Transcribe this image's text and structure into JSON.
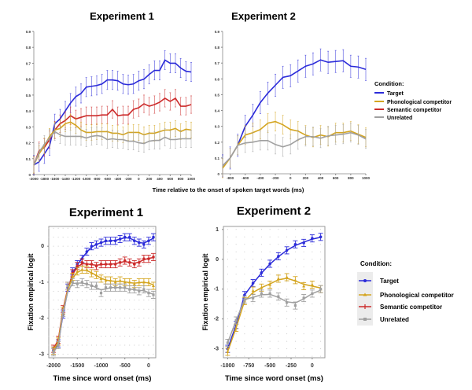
{
  "legend_top": {
    "title": "Condition:",
    "items": [
      "Target",
      "Phonological competitor",
      "Semantic competitor",
      "Unrelated"
    ]
  },
  "legend_bottom": {
    "title": "Condition:",
    "items": [
      "Target",
      "Phonological competitor",
      "Semantic competitor",
      "Unrelated"
    ]
  },
  "colors": {
    "target": "#2b2bd9",
    "phonological": "#d4a520",
    "semantic": "#cc2a2a",
    "unrelated": "#a0a0a0"
  },
  "top_xlabel": "Time relative to the onset of spoken target words (ms)",
  "chart_data": [
    {
      "type": "line",
      "title": "Experiment 1",
      "xlabel": "",
      "ylabel": "",
      "xlim": [
        -2000,
        1000
      ],
      "ylim": [
        0,
        0.9
      ],
      "xticks": [
        -2000,
        -1800,
        -1600,
        -1400,
        -1200,
        -1000,
        -800,
        -600,
        -400,
        -200,
        0,
        200,
        400,
        600,
        800,
        1000
      ],
      "yticks": [
        0,
        0.1,
        0.2,
        0.3,
        0.4,
        0.5,
        0.6,
        0.7,
        0.8,
        0.9
      ],
      "x_start": -2000,
      "x_step": 100,
      "grid": false,
      "series": [
        {
          "name": "Target",
          "key": "target",
          "err": 0.06,
          "values": [
            0.06,
            0.08,
            0.13,
            0.18,
            0.32,
            0.35,
            0.4,
            0.45,
            0.49,
            0.51,
            0.55,
            0.555,
            0.56,
            0.57,
            0.595,
            0.595,
            0.59,
            0.57,
            0.565,
            0.57,
            0.59,
            0.6,
            0.63,
            0.655,
            0.655,
            0.72,
            0.7,
            0.7,
            0.67,
            0.65,
            0.645
          ]
        },
        {
          "name": "Semantic competitor",
          "key": "semantic",
          "err": 0.055,
          "values": [
            0.06,
            0.15,
            0.17,
            0.22,
            0.28,
            0.32,
            0.34,
            0.37,
            0.35,
            0.36,
            0.37,
            0.37,
            0.37,
            0.375,
            0.375,
            0.41,
            0.37,
            0.375,
            0.375,
            0.41,
            0.42,
            0.445,
            0.43,
            0.44,
            0.455,
            0.48,
            0.46,
            0.48,
            0.43,
            0.43,
            0.44
          ]
        },
        {
          "name": "Phonological competitor",
          "key": "phonological",
          "err": 0.05,
          "values": [
            0.06,
            0.13,
            0.18,
            0.24,
            0.28,
            0.29,
            0.32,
            0.33,
            0.31,
            0.28,
            0.265,
            0.265,
            0.27,
            0.27,
            0.27,
            0.26,
            0.26,
            0.25,
            0.265,
            0.265,
            0.265,
            0.25,
            0.26,
            0.26,
            0.27,
            0.28,
            0.28,
            0.29,
            0.27,
            0.285,
            0.28
          ]
        },
        {
          "name": "Unrelated",
          "key": "unrelated",
          "err": 0.055,
          "values": [
            0.06,
            0.14,
            0.19,
            0.23,
            0.27,
            0.25,
            0.24,
            0.24,
            0.24,
            0.24,
            0.23,
            0.24,
            0.245,
            0.24,
            0.22,
            0.225,
            0.22,
            0.22,
            0.21,
            0.21,
            0.2,
            0.195,
            0.21,
            0.215,
            0.215,
            0.235,
            0.22,
            0.22,
            0.225,
            0.225,
            0.225
          ]
        }
      ]
    },
    {
      "type": "line",
      "title": "Experiment 2",
      "xlabel": "",
      "ylabel": "",
      "xlim": [
        -900,
        1000
      ],
      "ylim": [
        0,
        0.9
      ],
      "xticks": [
        -800,
        -600,
        -400,
        -200,
        0,
        200,
        400,
        600,
        800,
        1000
      ],
      "yticks": [
        0,
        0.1,
        0.2,
        0.3,
        0.4,
        0.5,
        0.6,
        0.7,
        0.8,
        0.9
      ],
      "x_start": -900,
      "x_step": 100,
      "grid": false,
      "series": [
        {
          "name": "Target",
          "key": "target",
          "err": 0.07,
          "values": [
            0.05,
            0.1,
            0.18,
            0.3,
            0.37,
            0.45,
            0.51,
            0.56,
            0.61,
            0.62,
            0.65,
            0.68,
            0.695,
            0.72,
            0.705,
            0.71,
            0.715,
            0.68,
            0.675,
            0.66
          ]
        },
        {
          "name": "Phonological competitor",
          "key": "phonological",
          "err": 0.06,
          "values": [
            0.035,
            0.1,
            0.18,
            0.245,
            0.26,
            0.28,
            0.32,
            0.33,
            0.31,
            0.28,
            0.27,
            0.245,
            0.23,
            0.245,
            0.235,
            0.26,
            0.26,
            0.27,
            0.25,
            0.23
          ]
        },
        {
          "name": "Unrelated",
          "key": "unrelated",
          "err": 0.06,
          "values": [
            0.05,
            0.1,
            0.18,
            0.195,
            0.2,
            0.21,
            0.21,
            0.185,
            0.17,
            0.185,
            0.215,
            0.235,
            0.235,
            0.225,
            0.24,
            0.245,
            0.25,
            0.26,
            0.245,
            0.22
          ]
        }
      ]
    },
    {
      "type": "line",
      "title": "Experiment 1",
      "xlabel": "Time since word onset (ms)",
      "ylabel": "Fixation empirical logit",
      "xlim": [
        -2100,
        150
      ],
      "ylim": [
        -3.1,
        0.55
      ],
      "xticks": [
        -2000,
        -1500,
        -1000,
        -500,
        0
      ],
      "yticks": [
        -3,
        -2,
        -1,
        0
      ],
      "x_start": -2000,
      "x_step": 100,
      "grid": true,
      "series": [
        {
          "name": "Target",
          "key": "target",
          "err": 0.1,
          "values": [
            -2.9,
            -2.7,
            -1.9,
            -1.15,
            -0.7,
            -0.5,
            -0.35,
            -0.15,
            0.0,
            0.05,
            0.1,
            0.15,
            0.15,
            0.15,
            0.2,
            0.25,
            0.25,
            0.15,
            0.1,
            0.05,
            0.15,
            0.25
          ]
        },
        {
          "name": "Semantic competitor",
          "key": "semantic",
          "err": 0.1,
          "values": [
            -2.85,
            -2.6,
            -1.75,
            -1.1,
            -0.75,
            -0.55,
            -0.45,
            -0.5,
            -0.5,
            -0.55,
            -0.5,
            -0.5,
            -0.5,
            -0.5,
            -0.45,
            -0.4,
            -0.45,
            -0.5,
            -0.45,
            -0.35,
            -0.35,
            -0.3
          ]
        },
        {
          "name": "Phonological competitor",
          "key": "phonological",
          "err": 0.1,
          "values": [
            -2.9,
            -2.65,
            -1.8,
            -1.1,
            -0.85,
            -0.7,
            -0.65,
            -0.65,
            -0.75,
            -0.8,
            -0.9,
            -0.95,
            -0.95,
            -1.0,
            -0.95,
            -1.0,
            -1.0,
            -1.05,
            -1.0,
            -1.0,
            -1.0,
            -1.1
          ]
        },
        {
          "name": "Unrelated",
          "key": "unrelated",
          "err": 0.1,
          "values": [
            -2.95,
            -2.75,
            -1.85,
            -1.1,
            -1.0,
            -1.05,
            -1.0,
            -1.05,
            -1.1,
            -1.1,
            -1.3,
            -1.15,
            -1.15,
            -1.15,
            -1.15,
            -1.15,
            -1.2,
            -1.2,
            -1.25,
            -1.2,
            -1.3,
            -1.35
          ]
        }
      ]
    },
    {
      "type": "line",
      "title": "Experiment 2",
      "xlabel": "Time since word onset (ms)",
      "ylabel": "Fixation empirical logit",
      "xlim": [
        -1050,
        150
      ],
      "ylim": [
        -3.3,
        1.1
      ],
      "xticks": [
        -1000,
        -750,
        -500,
        -250,
        0
      ],
      "yticks": [
        -3,
        -2,
        -1,
        0,
        1
      ],
      "x_start": -1000,
      "x_step": 100,
      "grid": true,
      "series": [
        {
          "name": "Target",
          "key": "target",
          "err": 0.12,
          "values": [
            -3.0,
            -2.2,
            -1.2,
            -0.8,
            -0.45,
            -0.15,
            0.1,
            0.3,
            0.5,
            0.55,
            0.7,
            0.75
          ]
        },
        {
          "name": "Phonological competitor",
          "key": "phonological",
          "err": 0.12,
          "values": [
            -3.1,
            -2.3,
            -1.4,
            -1.05,
            -0.95,
            -0.85,
            -0.65,
            -0.6,
            -0.7,
            -0.9,
            -0.85,
            -1.0
          ]
        },
        {
          "name": "Unrelated",
          "key": "unrelated",
          "err": 0.12,
          "values": [
            -2.8,
            -2.05,
            -1.35,
            -1.3,
            -1.15,
            -1.15,
            -1.25,
            -1.45,
            -1.55,
            -1.3,
            -1.15,
            -1.0
          ]
        }
      ]
    }
  ]
}
